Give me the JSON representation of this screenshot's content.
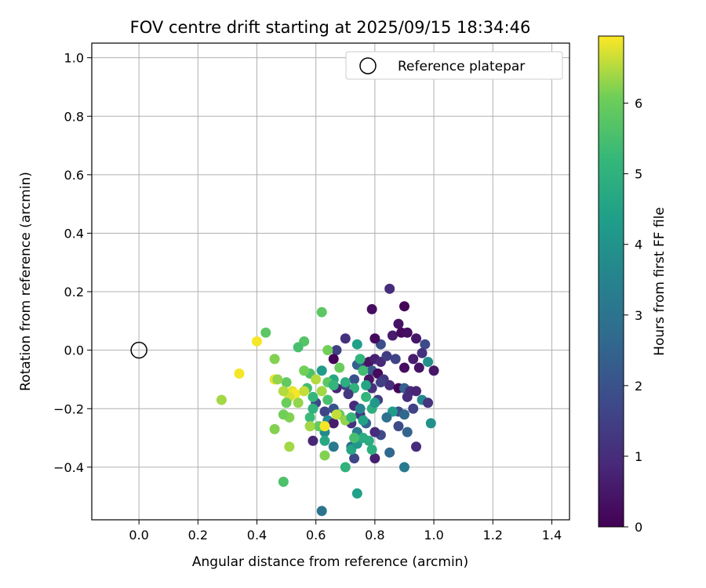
{
  "chart_data": {
    "type": "scatter",
    "title": "FOV centre drift starting at 2025/09/15 18:34:46",
    "xlabel": "Angular distance from reference (arcmin)",
    "ylabel": "Rotation from reference (arcmin)",
    "xlim": [
      -0.16,
      1.46
    ],
    "ylim": [
      -0.58,
      1.05
    ],
    "x_ticks": [
      "0.0",
      "0.2",
      "0.4",
      "0.6",
      "0.8",
      "1.0",
      "1.2",
      "1.4"
    ],
    "y_ticks": [
      "−0.4",
      "−0.2",
      "0.0",
      "0.2",
      "0.4",
      "0.6",
      "0.8",
      "1.0"
    ],
    "grid": true,
    "legend": {
      "position": "top-right",
      "entries": [
        "Reference platepar"
      ]
    },
    "reference_point": {
      "label": "Reference platepar",
      "x": 0.0,
      "y": 0.0
    },
    "colorbar": {
      "label": "Hours from first FF file",
      "colormap": "viridis",
      "min": 0,
      "max": 6.95,
      "ticks": [
        "0",
        "1",
        "2",
        "3",
        "4",
        "5",
        "6"
      ]
    },
    "series": [
      {
        "color_by": "hours",
        "points": [
          {
            "x": 0.9,
            "y": 0.15,
            "c": 0.1
          },
          {
            "x": 0.79,
            "y": 0.14,
            "c": 0.3
          },
          {
            "x": 0.85,
            "y": 0.21,
            "c": 1.0
          },
          {
            "x": 0.88,
            "y": 0.09,
            "c": 0.4
          },
          {
            "x": 0.86,
            "y": 0.05,
            "c": 0.6
          },
          {
            "x": 0.89,
            "y": 0.06,
            "c": 0.2
          },
          {
            "x": 0.91,
            "y": 0.06,
            "c": 0.3
          },
          {
            "x": 0.94,
            "y": 0.04,
            "c": 0.5
          },
          {
            "x": 0.97,
            "y": 0.02,
            "c": 1.8
          },
          {
            "x": 0.82,
            "y": 0.02,
            "c": 1.9
          },
          {
            "x": 0.8,
            "y": 0.04,
            "c": 0.2
          },
          {
            "x": 0.7,
            "y": 0.04,
            "c": 1.1
          },
          {
            "x": 0.67,
            "y": 0.0,
            "c": 1.5
          },
          {
            "x": 0.66,
            "y": -0.03,
            "c": 0.1
          },
          {
            "x": 0.76,
            "y": -0.05,
            "c": 1.2
          },
          {
            "x": 0.78,
            "y": -0.04,
            "c": 0.4
          },
          {
            "x": 0.8,
            "y": -0.03,
            "c": 0.7
          },
          {
            "x": 0.82,
            "y": -0.04,
            "c": 0.9
          },
          {
            "x": 0.84,
            "y": -0.02,
            "c": 1.4
          },
          {
            "x": 0.87,
            "y": -0.03,
            "c": 1.6
          },
          {
            "x": 0.9,
            "y": -0.06,
            "c": 0.3
          },
          {
            "x": 0.93,
            "y": -0.03,
            "c": 0.6
          },
          {
            "x": 0.96,
            "y": -0.01,
            "c": 1.1
          },
          {
            "x": 0.98,
            "y": -0.04,
            "c": 3.9
          },
          {
            "x": 1.0,
            "y": -0.07,
            "c": 0.5
          },
          {
            "x": 0.95,
            "y": -0.06,
            "c": 0.4
          },
          {
            "x": 0.79,
            "y": -0.07,
            "c": 2.2
          },
          {
            "x": 0.81,
            "y": -0.08,
            "c": 0.2
          },
          {
            "x": 0.83,
            "y": -0.1,
            "c": 1.3
          },
          {
            "x": 0.85,
            "y": -0.12,
            "c": 1.0
          },
          {
            "x": 0.88,
            "y": -0.13,
            "c": 0.1
          },
          {
            "x": 0.9,
            "y": -0.13,
            "c": 2.4
          },
          {
            "x": 0.92,
            "y": -0.14,
            "c": 0.9
          },
          {
            "x": 0.94,
            "y": -0.14,
            "c": 0.8
          },
          {
            "x": 0.96,
            "y": -0.17,
            "c": 3.7
          },
          {
            "x": 0.98,
            "y": -0.18,
            "c": 1.2
          },
          {
            "x": 0.91,
            "y": -0.16,
            "c": 1.0
          },
          {
            "x": 0.93,
            "y": -0.2,
            "c": 1.6
          },
          {
            "x": 0.88,
            "y": -0.21,
            "c": 1.9
          },
          {
            "x": 0.9,
            "y": -0.22,
            "c": 2.6
          },
          {
            "x": 0.86,
            "y": -0.21,
            "c": 4.3
          },
          {
            "x": 0.84,
            "y": -0.23,
            "c": 2.9
          },
          {
            "x": 0.88,
            "y": -0.26,
            "c": 1.8
          },
          {
            "x": 0.91,
            "y": -0.28,
            "c": 2.5
          },
          {
            "x": 0.94,
            "y": -0.33,
            "c": 1.0
          },
          {
            "x": 0.99,
            "y": -0.25,
            "c": 3.9
          },
          {
            "x": 0.85,
            "y": -0.35,
            "c": 2.6
          },
          {
            "x": 0.9,
            "y": -0.4,
            "c": 3.2
          },
          {
            "x": 0.8,
            "y": -0.37,
            "c": 0.7
          },
          {
            "x": 0.82,
            "y": -0.29,
            "c": 1.8
          },
          {
            "x": 0.8,
            "y": -0.28,
            "c": 1.0
          },
          {
            "x": 0.78,
            "y": -0.31,
            "c": 4.8
          },
          {
            "x": 0.77,
            "y": -0.25,
            "c": 2.4
          },
          {
            "x": 0.75,
            "y": -0.22,
            "c": 1.3
          },
          {
            "x": 0.73,
            "y": -0.19,
            "c": 0.9
          },
          {
            "x": 0.75,
            "y": -0.2,
            "c": 3.5
          },
          {
            "x": 0.76,
            "y": -0.24,
            "c": 4.5
          },
          {
            "x": 0.72,
            "y": -0.25,
            "c": 1.1
          },
          {
            "x": 0.74,
            "y": -0.28,
            "c": 3.3
          },
          {
            "x": 0.72,
            "y": -0.33,
            "c": 2.7
          },
          {
            "x": 0.73,
            "y": -0.37,
            "c": 1.7
          },
          {
            "x": 0.72,
            "y": -0.34,
            "c": 4.6
          },
          {
            "x": 0.79,
            "y": -0.34,
            "c": 4.9
          },
          {
            "x": 0.74,
            "y": -0.49,
            "c": 4.4
          },
          {
            "x": 0.7,
            "y": -0.4,
            "c": 5.0
          },
          {
            "x": 0.62,
            "y": -0.55,
            "c": 3.0
          },
          {
            "x": 0.7,
            "y": -0.12,
            "c": 1.6
          },
          {
            "x": 0.73,
            "y": -0.1,
            "c": 2.0
          },
          {
            "x": 0.78,
            "y": -0.1,
            "c": 0.4
          },
          {
            "x": 0.79,
            "y": -0.13,
            "c": 1.1
          },
          {
            "x": 0.77,
            "y": -0.12,
            "c": 4.6
          },
          {
            "x": 0.82,
            "y": -0.11,
            "c": 1.5
          },
          {
            "x": 0.74,
            "y": -0.05,
            "c": 2.4
          },
          {
            "x": 0.75,
            "y": -0.03,
            "c": 5.1
          },
          {
            "x": 0.74,
            "y": 0.02,
            "c": 4.4
          },
          {
            "x": 0.76,
            "y": -0.07,
            "c": 5.4
          },
          {
            "x": 0.62,
            "y": -0.07,
            "c": 4.3
          },
          {
            "x": 0.66,
            "y": -0.1,
            "c": 4.7
          },
          {
            "x": 0.67,
            "y": -0.13,
            "c": 0.8
          },
          {
            "x": 0.7,
            "y": -0.11,
            "c": 4.9
          },
          {
            "x": 0.73,
            "y": -0.13,
            "c": 5.0
          },
          {
            "x": 0.71,
            "y": -0.15,
            "c": 1.3
          },
          {
            "x": 0.6,
            "y": -0.18,
            "c": 1.7
          },
          {
            "x": 0.64,
            "y": -0.17,
            "c": 5.5
          },
          {
            "x": 0.63,
            "y": -0.21,
            "c": 1.6
          },
          {
            "x": 0.66,
            "y": -0.2,
            "c": 2.0
          },
          {
            "x": 0.68,
            "y": -0.22,
            "c": 6.0
          },
          {
            "x": 0.64,
            "y": -0.24,
            "c": 3.6
          },
          {
            "x": 0.66,
            "y": -0.25,
            "c": 0.6
          },
          {
            "x": 0.63,
            "y": -0.28,
            "c": 3.7
          },
          {
            "x": 0.61,
            "y": -0.26,
            "c": 5.9
          },
          {
            "x": 0.59,
            "y": -0.31,
            "c": 0.8
          },
          {
            "x": 0.63,
            "y": -0.31,
            "c": 4.7
          },
          {
            "x": 0.66,
            "y": -0.33,
            "c": 3.2
          },
          {
            "x": 0.74,
            "y": -0.32,
            "c": 4.1
          },
          {
            "x": 0.76,
            "y": -0.3,
            "c": 4.8
          },
          {
            "x": 0.73,
            "y": -0.3,
            "c": 5.5
          },
          {
            "x": 0.63,
            "y": -0.36,
            "c": 6.2
          },
          {
            "x": 0.58,
            "y": -0.26,
            "c": 5.7
          },
          {
            "x": 0.58,
            "y": -0.23,
            "c": 5.3
          },
          {
            "x": 0.59,
            "y": -0.16,
            "c": 5.2
          },
          {
            "x": 0.59,
            "y": -0.2,
            "c": 5.0
          },
          {
            "x": 0.57,
            "y": -0.13,
            "c": 5.4
          },
          {
            "x": 0.58,
            "y": -0.08,
            "c": 5.6
          },
          {
            "x": 0.6,
            "y": -0.1,
            "c": 6.5
          },
          {
            "x": 0.62,
            "y": -0.14,
            "c": 6.4
          },
          {
            "x": 0.64,
            "y": -0.11,
            "c": 5.8
          },
          {
            "x": 0.66,
            "y": -0.12,
            "c": 5.1
          },
          {
            "x": 0.68,
            "y": -0.06,
            "c": 6.0
          },
          {
            "x": 0.64,
            "y": 0.0,
            "c": 6.1
          },
          {
            "x": 0.62,
            "y": 0.13,
            "c": 5.8
          },
          {
            "x": 0.56,
            "y": 0.03,
            "c": 5.7
          },
          {
            "x": 0.54,
            "y": 0.01,
            "c": 5.5
          },
          {
            "x": 0.56,
            "y": -0.07,
            "c": 6.1
          },
          {
            "x": 0.5,
            "y": -0.11,
            "c": 5.9
          },
          {
            "x": 0.52,
            "y": -0.14,
            "c": 6.8
          },
          {
            "x": 0.53,
            "y": -0.15,
            "c": 6.9
          },
          {
            "x": 0.51,
            "y": -0.16,
            "c": 6.7
          },
          {
            "x": 0.49,
            "y": -0.14,
            "c": 6.5
          },
          {
            "x": 0.54,
            "y": -0.18,
            "c": 6.3
          },
          {
            "x": 0.56,
            "y": -0.14,
            "c": 6.6
          },
          {
            "x": 0.5,
            "y": -0.18,
            "c": 6.0
          },
          {
            "x": 0.51,
            "y": -0.23,
            "c": 6.2
          },
          {
            "x": 0.49,
            "y": -0.22,
            "c": 6.1
          },
          {
            "x": 0.46,
            "y": -0.1,
            "c": 6.8
          },
          {
            "x": 0.47,
            "y": -0.1,
            "c": 6.3
          },
          {
            "x": 0.46,
            "y": -0.03,
            "c": 6.2
          },
          {
            "x": 0.43,
            "y": 0.06,
            "c": 5.8
          },
          {
            "x": 0.4,
            "y": 0.03,
            "c": 6.9
          },
          {
            "x": 0.34,
            "y": -0.08,
            "c": 6.9
          },
          {
            "x": 0.28,
            "y": -0.17,
            "c": 6.4
          },
          {
            "x": 0.46,
            "y": -0.27,
            "c": 6.2
          },
          {
            "x": 0.51,
            "y": -0.33,
            "c": 6.4
          },
          {
            "x": 0.49,
            "y": -0.45,
            "c": 5.6
          },
          {
            "x": 0.58,
            "y": -0.26,
            "c": 6.4
          },
          {
            "x": 0.63,
            "y": -0.26,
            "c": 6.9
          },
          {
            "x": 0.67,
            "y": -0.22,
            "c": 6.6
          },
          {
            "x": 0.7,
            "y": -0.24,
            "c": 6.3
          },
          {
            "x": 0.72,
            "y": -0.23,
            "c": 5.2
          },
          {
            "x": 0.77,
            "y": -0.16,
            "c": 5.1
          },
          {
            "x": 0.79,
            "y": -0.2,
            "c": 4.9
          },
          {
            "x": 0.81,
            "y": -0.17,
            "c": 1.4
          },
          {
            "x": 0.8,
            "y": -0.18,
            "c": 4.2
          }
        ]
      }
    ]
  }
}
